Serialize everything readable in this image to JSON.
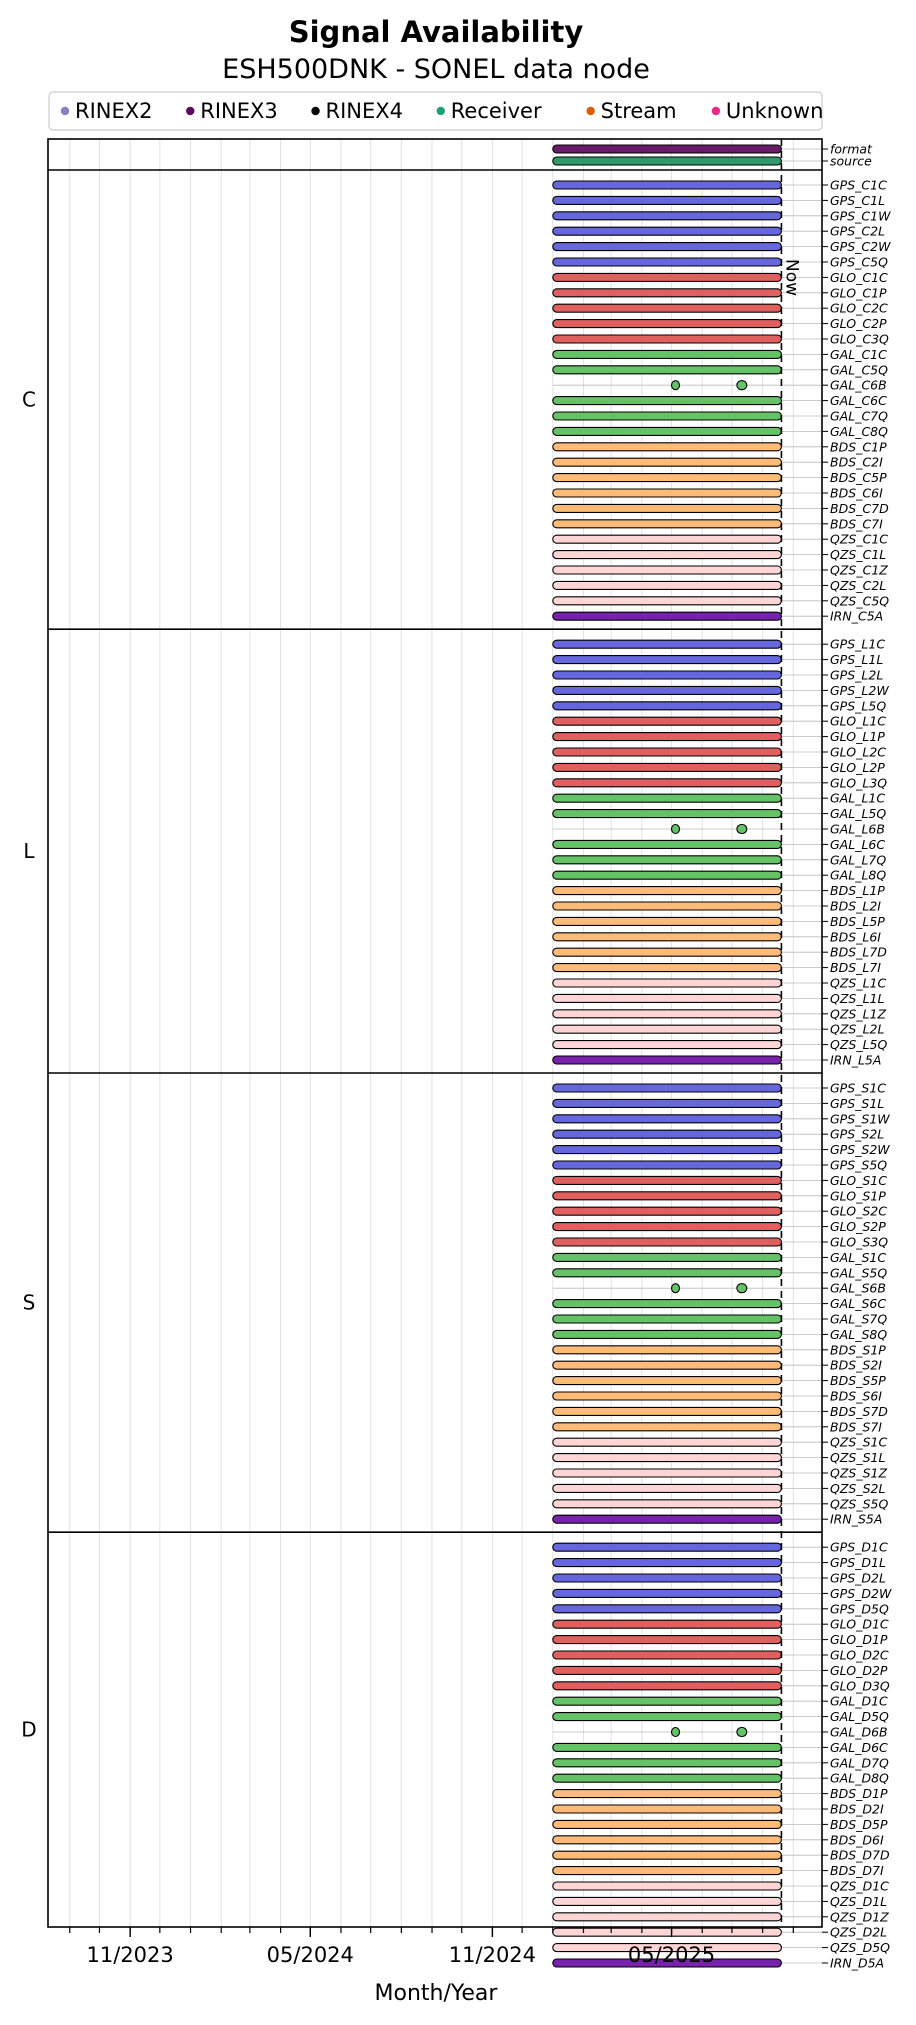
{
  "chart_data": {
    "type": "timeline",
    "title": "Signal Availability",
    "subtitle": "ESH500DNK - SONEL data node",
    "xlabel": "Month/Year",
    "x_range": [
      "2023-08-10",
      "2025-09-30"
    ],
    "x_ticks": [
      {
        "date": "2023-11-01",
        "label": "11/2023"
      },
      {
        "date": "2024-05-01",
        "label": "05/2024"
      },
      {
        "date": "2024-11-01",
        "label": "11/2024"
      },
      {
        "date": "2025-05-01",
        "label": "05/2025"
      }
    ],
    "now_label": "Now",
    "now_date": "2025-08-20",
    "grid": true,
    "legend": {
      "placement": "top-center",
      "items": [
        {
          "label": "RINEX2",
          "color": "#8c7fc0"
        },
        {
          "label": "RINEX3",
          "color": "#5c0a5c"
        },
        {
          "label": "RINEX4",
          "color": "#000000"
        },
        {
          "label": "Receiver",
          "color": "#1f9e77"
        },
        {
          "label": "Stream",
          "color": "#d95f02"
        },
        {
          "label": "Unknown",
          "color": "#e7298a"
        }
      ]
    },
    "constellation_colors": {
      "GPS": "#6666dd",
      "GLO": "#e06060",
      "GAL": "#66c266",
      "BDS": "#ffbb77",
      "QZS": "#ffd5d5",
      "IRN": "#7722aa"
    },
    "start_date": "2025-01-01",
    "end_date": "2025-08-20",
    "partial_signal_periods": [
      {
        "start": "2025-05-05",
        "end": "2025-05-07"
      },
      {
        "start": "2025-07-06",
        "end": "2025-07-16"
      }
    ],
    "meta_panel": {
      "rows": [
        {
          "label": "format",
          "color": "#6a1a6a"
        },
        {
          "label": "source",
          "color": "#2e9a6a"
        }
      ]
    },
    "groups": [
      {
        "name": "C",
        "signals": [
          "GPS_C1C",
          "GPS_C1L",
          "GPS_C1W",
          "GPS_C2L",
          "GPS_C2W",
          "GPS_C5Q",
          "GLO_C1C",
          "GLO_C1P",
          "GLO_C2C",
          "GLO_C2P",
          "GLO_C3Q",
          "GAL_C1C",
          "GAL_C5Q",
          "GAL_C6B",
          "GAL_C6C",
          "GAL_C7Q",
          "GAL_C8Q",
          "BDS_C1P",
          "BDS_C2I",
          "BDS_C5P",
          "BDS_C6I",
          "BDS_C7D",
          "BDS_C7I",
          "QZS_C1C",
          "QZS_C1L",
          "QZS_C1Z",
          "QZS_C2L",
          "QZS_C5Q",
          "IRN_C5A"
        ]
      },
      {
        "name": "L",
        "signals": [
          "GPS_L1C",
          "GPS_L1L",
          "GPS_L2L",
          "GPS_L2W",
          "GPS_L5Q",
          "GLO_L1C",
          "GLO_L1P",
          "GLO_L2C",
          "GLO_L2P",
          "GLO_L3Q",
          "GAL_L1C",
          "GAL_L5Q",
          "GAL_L6B",
          "GAL_L6C",
          "GAL_L7Q",
          "GAL_L8Q",
          "BDS_L1P",
          "BDS_L2I",
          "BDS_L5P",
          "BDS_L6I",
          "BDS_L7D",
          "BDS_L7I",
          "QZS_L1C",
          "QZS_L1L",
          "QZS_L1Z",
          "QZS_L2L",
          "QZS_L5Q",
          "IRN_L5A"
        ]
      },
      {
        "name": "S",
        "signals": [
          "GPS_S1C",
          "GPS_S1L",
          "GPS_S1W",
          "GPS_S2L",
          "GPS_S2W",
          "GPS_S5Q",
          "GLO_S1C",
          "GLO_S1P",
          "GLO_S2C",
          "GLO_S2P",
          "GLO_S3Q",
          "GAL_S1C",
          "GAL_S5Q",
          "GAL_S6B",
          "GAL_S6C",
          "GAL_S7Q",
          "GAL_S8Q",
          "BDS_S1P",
          "BDS_S2I",
          "BDS_S5P",
          "BDS_S6I",
          "BDS_S7D",
          "BDS_S7I",
          "QZS_S1C",
          "QZS_S1L",
          "QZS_S1Z",
          "QZS_S2L",
          "QZS_S5Q",
          "IRN_S5A"
        ]
      },
      {
        "name": "D",
        "signals": [
          "GPS_D1C",
          "GPS_D1L",
          "GPS_D2L",
          "GPS_D2W",
          "GPS_D5Q",
          "GLO_D1C",
          "GLO_D1P",
          "GLO_D2C",
          "GLO_D2P",
          "GLO_D3Q",
          "GAL_D1C",
          "GAL_D5Q",
          "GAL_D6B",
          "GAL_D6C",
          "GAL_D7Q",
          "GAL_D8Q",
          "BDS_D1P",
          "BDS_D2I",
          "BDS_D5P",
          "BDS_D6I",
          "BDS_D7D",
          "BDS_D7I",
          "QZS_D1C",
          "QZS_D1L",
          "QZS_D1Z",
          "QZS_D2L",
          "QZS_D5Q",
          "IRN_D5A"
        ]
      }
    ]
  }
}
